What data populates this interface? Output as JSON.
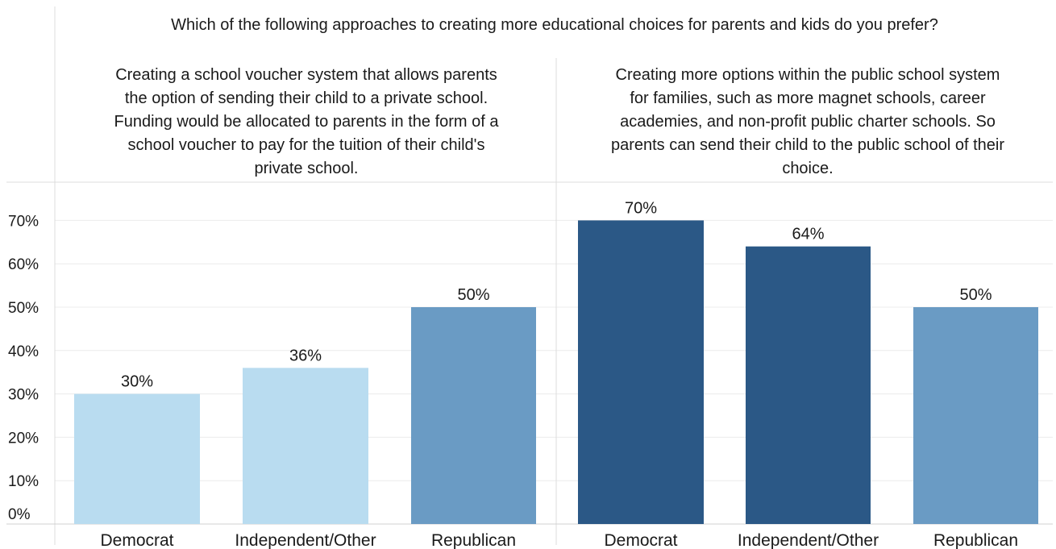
{
  "chart_data": {
    "type": "bar",
    "title": "Which of the following approaches to creating more educational choices for parents and kids do you prefer?",
    "ylim": [
      0,
      80
    ],
    "y_ticks": [
      "0%",
      "10%",
      "20%",
      "30%",
      "40%",
      "50%",
      "60%",
      "70%"
    ],
    "y_tick_values": [
      0,
      10,
      20,
      30,
      40,
      50,
      60,
      70
    ],
    "panels": [
      {
        "header_lines": [
          "Creating a school voucher system that allows parents",
          "the option of sending their child to a private school.",
          "Funding would be allocated to parents in the form of a",
          "school voucher to pay for the tuition of their child's",
          "private school."
        ],
        "categories": [
          "Democrat",
          "Independent/Other",
          "Republican"
        ],
        "values": [
          30,
          36,
          50
        ],
        "value_labels": [
          "30%",
          "36%",
          "50%"
        ],
        "colors": [
          "#b9dcf0",
          "#b9dcf0",
          "#6a9bc4"
        ]
      },
      {
        "header_lines": [
          "Creating more options within the public school system",
          "for families, such as more magnet schools, career",
          "academies, and non-profit public charter schools. So",
          "parents can send their child to the public school of their",
          "choice."
        ],
        "categories": [
          "Democrat",
          "Independent/Other",
          "Republican"
        ],
        "values": [
          70,
          64,
          50
        ],
        "value_labels": [
          "70%",
          "64%",
          "50%"
        ],
        "colors": [
          "#2b5886",
          "#2b5886",
          "#6a9bc4"
        ]
      }
    ]
  }
}
